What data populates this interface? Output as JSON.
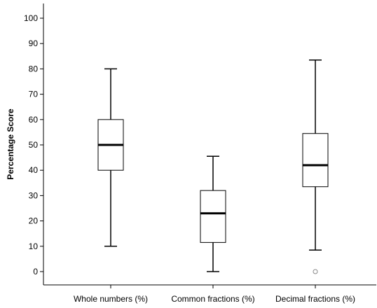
{
  "chart_data": {
    "type": "boxplot",
    "title": "",
    "xlabel": "",
    "ylabel": "Percentage Score",
    "ylim": [
      -5,
      105
    ],
    "yticks": [
      0,
      10,
      20,
      30,
      40,
      50,
      60,
      70,
      80,
      90,
      100
    ],
    "grid": false,
    "categories": [
      "Whole numbers (%)",
      "Common fractions (%)",
      "Decimal fractions (%)"
    ],
    "boxes": [
      {
        "category": "Whole numbers (%)",
        "min": 10,
        "q1": 40,
        "median": 50,
        "q3": 60,
        "max": 80,
        "outliers": []
      },
      {
        "category": "Common fractions (%)",
        "min": 0,
        "q1": 11.5,
        "median": 23,
        "q3": 32,
        "max": 45.5,
        "outliers": []
      },
      {
        "category": "Decimal fractions (%)",
        "min": 8.5,
        "q1": 33.5,
        "median": 42,
        "q3": 54.5,
        "max": 83.5,
        "outliers": [
          0
        ]
      }
    ],
    "colors": {
      "box_fill": "#ffffff",
      "stroke": "#000000",
      "outlier": "#888888"
    }
  }
}
